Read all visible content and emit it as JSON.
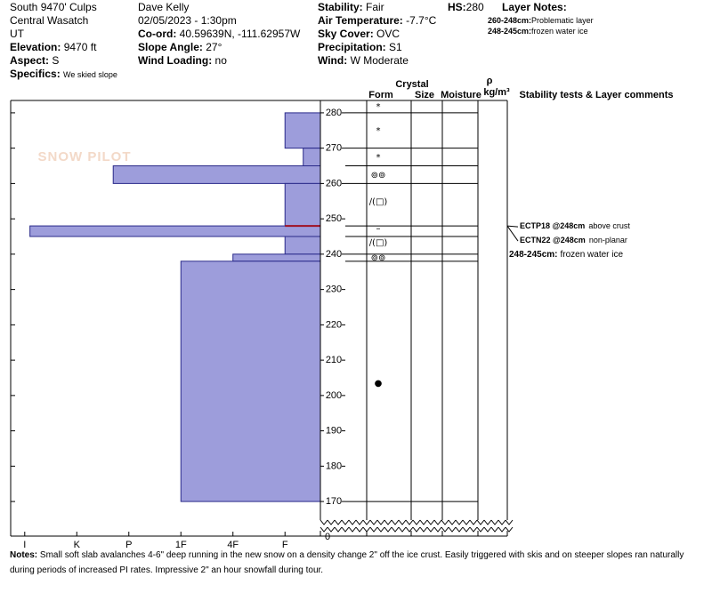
{
  "header": {
    "col1": [
      {
        "value": "South 9470' Culps"
      },
      {
        "value": "Central Wasatch"
      },
      {
        "value": "UT"
      },
      {
        "label": "Elevation:",
        "value": "9470 ft"
      },
      {
        "label": "Aspect:",
        "value": "S"
      },
      {
        "label": "Specifics:",
        "value": "We skied slope"
      }
    ],
    "col2": [
      {
        "value": "Dave Kelly"
      },
      {
        "value": "02/05/2023 - 1:30pm"
      },
      {
        "label": "Co-ord:",
        "value": "40.59639N, -111.62957W"
      },
      {
        "label": "Slope Angle:",
        "value": "27°"
      },
      {
        "label": "Wind Loading:",
        "value": "no"
      }
    ],
    "col3": [
      {
        "label": "Stability:",
        "value": "Fair"
      },
      {
        "label": "Air Temperature:",
        "value": "-7.7°C"
      },
      {
        "label": "Sky Cover:",
        "value": "OVC"
      },
      {
        "label": "Precipitation:",
        "value": "S1"
      },
      {
        "label": "Wind:",
        "value": "W Moderate"
      }
    ],
    "hs": {
      "label": "HS:",
      "value": "280"
    },
    "layer_notes": {
      "title": "Layer Notes:",
      "items": [
        {
          "label": "260-248cm:",
          "value": "Problematic layer"
        },
        {
          "label": "248-245cm:",
          "value": "frozen water ice"
        }
      ]
    }
  },
  "logo": "SNOW PILOT",
  "columns": {
    "crystal": "Crystal",
    "form": "Form",
    "size": "Size",
    "moisture": "Moisture",
    "rho": "ρ",
    "density": "kg/m³",
    "comments": "Stability tests & Layer comments"
  },
  "chart_data": {
    "type": "snow-profile",
    "layers": [
      {
        "top": 280,
        "bottom": 270,
        "hardness": 1
      },
      {
        "top": 270,
        "bottom": 265,
        "hardness": 0.65
      },
      {
        "top": 265,
        "bottom": 260,
        "hardness": 4.3
      },
      {
        "top": 260,
        "bottom": 248,
        "hardness": 1
      },
      {
        "top": 248,
        "bottom": 245,
        "hardness": 5.9
      },
      {
        "top": 245,
        "bottom": 240,
        "hardness": 1
      },
      {
        "top": 240,
        "bottom": 238,
        "hardness": 2
      },
      {
        "top": 238,
        "bottom": 170,
        "hardness": 3
      }
    ],
    "bar_color": "#9d9ddb",
    "edge_color": "#2a2a8a",
    "xlim": [
      6.27,
      0.32
    ],
    "xticks": [
      {
        "value": 6,
        "label": "I"
      },
      {
        "value": 5,
        "label": "K"
      },
      {
        "value": 4,
        "label": "P"
      },
      {
        "value": 3,
        "label": "1F"
      },
      {
        "value": 2,
        "label": "4F"
      },
      {
        "value": 1,
        "label": "F"
      }
    ],
    "ylim": [
      166.5,
      283.5
    ],
    "yticks": [
      170,
      180,
      190,
      200,
      210,
      220,
      230,
      240,
      250,
      260,
      270,
      280
    ],
    "ytick_below_break": 0,
    "forms": [
      {
        "height": 281.8,
        "form": "*"
      },
      {
        "height": 275,
        "form": "*"
      },
      {
        "height": 267.4,
        "form": "*"
      },
      {
        "height": 262.4,
        "form": "⊚⊚"
      },
      {
        "height": 254.8,
        "form": "∕(□)"
      },
      {
        "height": 247.3,
        "form": "–"
      },
      {
        "height": 243.3,
        "form": "∕(□)"
      },
      {
        "height": 239,
        "form": "⊚⊚"
      },
      {
        "height": 203.5,
        "form": "●"
      }
    ],
    "tests": [
      {
        "height": 248,
        "name": "ECTP18 @248cm",
        "comment": "above crust"
      },
      {
        "height": 248,
        "name": "ECTN22 @248cm",
        "comment": "non-planar"
      }
    ],
    "failure_color": "#a01020",
    "comments": [
      {
        "label": "248-245cm:",
        "value": "frozen water ice"
      }
    ]
  },
  "notes": {
    "label": "Notes:",
    "value": "Small soft slab avalanches 4-6\" deep  running in the new snow on a density change 2\" off the ice crust. Easily triggered with skis and on steeper slopes ran naturally during periods of increased PI rates. Impressive 2\" an hour snowfall during tour."
  }
}
